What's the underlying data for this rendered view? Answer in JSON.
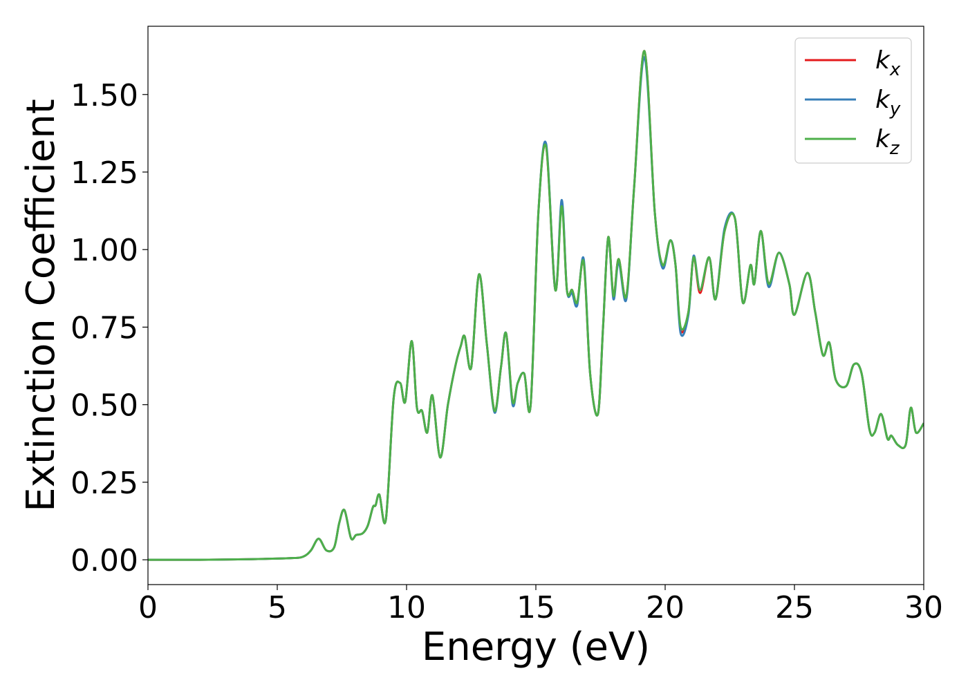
{
  "chart_data": {
    "type": "line",
    "title": "",
    "xlabel": "Energy (eV)",
    "ylabel": "Extinction Coefficient",
    "xlim": [
      0,
      30
    ],
    "ylim": [
      -0.08,
      1.72
    ],
    "xticks": [
      0,
      5,
      10,
      15,
      20,
      25,
      30
    ],
    "xtick_labels": [
      "0",
      "5",
      "10",
      "15",
      "20",
      "25",
      "30"
    ],
    "yticks": [
      0,
      0.25,
      0.5,
      0.75,
      1.0,
      1.25,
      1.5
    ],
    "ytick_labels": [
      "0.00",
      "0.25",
      "0.50",
      "0.75",
      "1.00",
      "1.25",
      "1.50"
    ],
    "grid": false,
    "legend_position": "top-right",
    "x": [
      0,
      2,
      4,
      5.5,
      6.0,
      6.3,
      6.6,
      6.9,
      7.2,
      7.4,
      7.6,
      7.85,
      8.05,
      8.3,
      8.5,
      8.7,
      8.8,
      8.95,
      9.2,
      9.5,
      9.75,
      9.95,
      10.2,
      10.4,
      10.6,
      10.8,
      11.0,
      11.3,
      11.6,
      11.9,
      12.1,
      12.25,
      12.5,
      12.8,
      13.1,
      13.4,
      13.65,
      13.85,
      14.1,
      14.3,
      14.55,
      14.8,
      15.1,
      15.4,
      15.75,
      16.0,
      16.2,
      16.4,
      16.6,
      16.85,
      17.1,
      17.4,
      17.6,
      17.8,
      18.0,
      18.2,
      18.5,
      18.8,
      19.2,
      19.6,
      19.9,
      20.2,
      20.4,
      20.6,
      20.9,
      21.1,
      21.35,
      21.7,
      21.95,
      22.3,
      22.7,
      23.0,
      23.3,
      23.45,
      23.7,
      24.0,
      24.4,
      24.8,
      25.0,
      25.5,
      25.8,
      26.1,
      26.35,
      26.6,
      27.0,
      27.3,
      27.6,
      27.9,
      28.1,
      28.35,
      28.6,
      28.75,
      29.0,
      29.3,
      29.5,
      29.7,
      30.0
    ],
    "series": [
      {
        "name": "k_x",
        "color": "#e41a1c",
        "values": [
          0.0,
          0.0,
          0.002,
          0.005,
          0.01,
          0.03,
          0.068,
          0.03,
          0.04,
          0.12,
          0.16,
          0.07,
          0.08,
          0.085,
          0.11,
          0.17,
          0.175,
          0.21,
          0.13,
          0.52,
          0.57,
          0.51,
          0.705,
          0.49,
          0.48,
          0.41,
          0.53,
          0.33,
          0.5,
          0.63,
          0.69,
          0.72,
          0.62,
          0.92,
          0.7,
          0.48,
          0.62,
          0.73,
          0.51,
          0.57,
          0.6,
          0.5,
          1.12,
          1.33,
          0.87,
          1.15,
          0.87,
          0.87,
          0.83,
          0.96,
          0.6,
          0.47,
          0.75,
          1.04,
          0.85,
          0.97,
          0.85,
          1.2,
          1.64,
          1.12,
          0.95,
          1.03,
          0.95,
          0.74,
          0.8,
          0.975,
          0.86,
          0.975,
          0.84,
          1.06,
          1.1,
          0.83,
          0.95,
          0.89,
          1.06,
          0.89,
          0.99,
          0.89,
          0.79,
          0.925,
          0.8,
          0.66,
          0.7,
          0.58,
          0.56,
          0.63,
          0.6,
          0.42,
          0.41,
          0.47,
          0.39,
          0.4,
          0.37,
          0.37,
          0.49,
          0.41,
          0.44
        ]
      },
      {
        "name": "k_y",
        "color": "#377eb8",
        "values": [
          0.0,
          0.0,
          0.002,
          0.005,
          0.01,
          0.03,
          0.068,
          0.03,
          0.04,
          0.12,
          0.16,
          0.07,
          0.08,
          0.085,
          0.11,
          0.17,
          0.175,
          0.21,
          0.13,
          0.52,
          0.57,
          0.51,
          0.705,
          0.49,
          0.48,
          0.41,
          0.53,
          0.33,
          0.5,
          0.63,
          0.69,
          0.72,
          0.62,
          0.92,
          0.7,
          0.475,
          0.62,
          0.73,
          0.5,
          0.57,
          0.6,
          0.5,
          1.12,
          1.34,
          0.87,
          1.16,
          0.87,
          0.86,
          0.82,
          0.97,
          0.6,
          0.47,
          0.75,
          1.04,
          0.84,
          0.96,
          0.84,
          1.2,
          1.62,
          1.12,
          0.94,
          1.03,
          0.95,
          0.73,
          0.79,
          0.98,
          0.87,
          0.975,
          0.84,
          1.07,
          1.1,
          0.83,
          0.95,
          0.89,
          1.06,
          0.88,
          0.99,
          0.89,
          0.79,
          0.925,
          0.8,
          0.66,
          0.7,
          0.58,
          0.56,
          0.63,
          0.6,
          0.42,
          0.41,
          0.47,
          0.39,
          0.4,
          0.37,
          0.37,
          0.49,
          0.41,
          0.44
        ]
      },
      {
        "name": "k_z",
        "color": "#4daf4a",
        "values": [
          0.0,
          0.0,
          0.002,
          0.005,
          0.01,
          0.03,
          0.068,
          0.03,
          0.04,
          0.12,
          0.16,
          0.07,
          0.08,
          0.085,
          0.11,
          0.17,
          0.175,
          0.21,
          0.13,
          0.52,
          0.57,
          0.51,
          0.705,
          0.49,
          0.48,
          0.41,
          0.53,
          0.33,
          0.5,
          0.63,
          0.69,
          0.72,
          0.62,
          0.92,
          0.7,
          0.48,
          0.62,
          0.73,
          0.51,
          0.57,
          0.6,
          0.5,
          1.12,
          1.33,
          0.87,
          1.14,
          0.87,
          0.87,
          0.83,
          0.96,
          0.6,
          0.47,
          0.75,
          1.04,
          0.85,
          0.97,
          0.85,
          1.2,
          1.64,
          1.12,
          0.95,
          1.03,
          0.95,
          0.75,
          0.8,
          0.975,
          0.87,
          0.975,
          0.84,
          1.06,
          1.1,
          0.83,
          0.95,
          0.89,
          1.06,
          0.89,
          0.99,
          0.89,
          0.79,
          0.925,
          0.8,
          0.66,
          0.7,
          0.58,
          0.56,
          0.63,
          0.6,
          0.42,
          0.41,
          0.47,
          0.39,
          0.4,
          0.37,
          0.37,
          0.49,
          0.41,
          0.44
        ]
      }
    ],
    "legend": [
      {
        "base": "k",
        "sub": "x",
        "color": "#e41a1c"
      },
      {
        "base": "k",
        "sub": "y",
        "color": "#377eb8"
      },
      {
        "base": "k",
        "sub": "z",
        "color": "#4daf4a"
      }
    ]
  }
}
